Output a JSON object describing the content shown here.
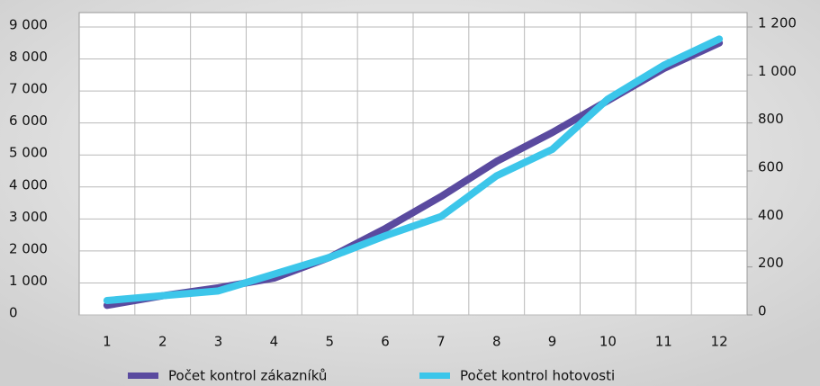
{
  "chart_data": {
    "type": "line",
    "categories": [
      "1",
      "2",
      "3",
      "4",
      "5",
      "6",
      "7",
      "8",
      "9",
      "10",
      "11",
      "12"
    ],
    "series": [
      {
        "name": "Počet kontrol zákazníků",
        "color": "#5a4a9f",
        "values": [
          300,
          600,
          850,
          1150,
          1800,
          2700,
          3700,
          4800,
          5700,
          6700,
          7700,
          8500
        ]
      },
      {
        "name": "Počet kontrol hotovosti",
        "color": "#3cc6ea",
        "axis": "y2",
        "values": [
          60,
          80,
          100,
          170,
          240,
          330,
          410,
          580,
          690,
          900,
          1040,
          1150
        ]
      }
    ],
    "ylim": [
      0,
      9450
    ],
    "yticks": [
      0,
      {
        "value": 1000,
        "label": "1 000"
      },
      {
        "value": 2000,
        "label": "2 000"
      },
      {
        "value": 3000,
        "label": "3 000"
      },
      {
        "value": 4000,
        "label": "4 000"
      },
      {
        "value": 5000,
        "label": "5 000"
      },
      {
        "value": 6000,
        "label": "6 000"
      },
      {
        "value": 7000,
        "label": "7 000"
      },
      {
        "value": 8000,
        "label": "8 000"
      },
      {
        "value": 9000,
        "label": "9 000"
      }
    ],
    "y2lim": [
      0,
      1260
    ],
    "y2ticks": [
      0,
      200,
      400,
      600,
      800,
      {
        "value": 1000,
        "label": "1 000"
      },
      {
        "value": 1200,
        "label": "1 200"
      }
    ],
    "grid": true,
    "legend": "bottom"
  }
}
